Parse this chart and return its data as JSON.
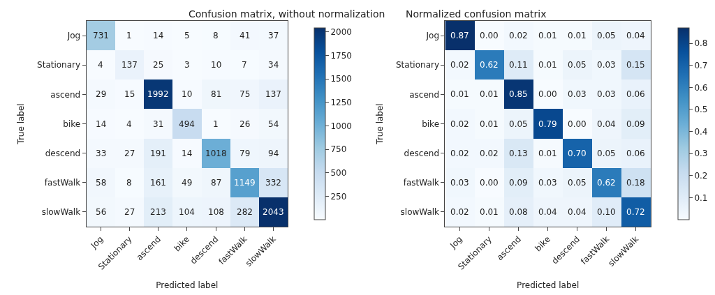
{
  "chart_data": [
    {
      "type": "heatmap",
      "title": "Confusion matrix, without normalization",
      "xlabel": "Predicted label",
      "ylabel": "True label",
      "categories": [
        "Jog",
        "Stationary",
        "ascend",
        "bike",
        "descend",
        "fastWalk",
        "slowWalk"
      ],
      "y_categories": [
        "Jog",
        "Stationary",
        "ascend",
        "bike",
        "descend",
        "fastWalk",
        "slowWalk"
      ],
      "cells": [
        [
          731,
          1,
          14,
          5,
          8,
          41,
          37
        ],
        [
          4,
          137,
          25,
          3,
          10,
          7,
          34
        ],
        [
          29,
          15,
          1992,
          10,
          81,
          75,
          137
        ],
        [
          14,
          4,
          31,
          494,
          1,
          26,
          54
        ],
        [
          33,
          27,
          191,
          14,
          1018,
          79,
          94
        ],
        [
          58,
          8,
          161,
          49,
          87,
          1149,
          332
        ],
        [
          56,
          27,
          213,
          104,
          108,
          282,
          2043
        ]
      ],
      "clim": [
        1,
        2043
      ],
      "cticks": [
        250,
        500,
        750,
        1000,
        1250,
        1500,
        1750,
        2000
      ],
      "data_labels": true
    },
    {
      "type": "heatmap",
      "title": "Normalized confusion matrix",
      "xlabel": "Predicted label",
      "ylabel": "True label",
      "categories": [
        "Jog",
        "Stationary",
        "ascend",
        "bike",
        "descend",
        "fastWalk",
        "slowWalk"
      ],
      "y_categories": [
        "Jog",
        "Stationary",
        "ascend",
        "bike",
        "descend",
        "fastWalk",
        "slowWalk"
      ],
      "cells": [
        [
          0.87,
          0.0,
          0.02,
          0.01,
          0.01,
          0.05,
          0.04
        ],
        [
          0.02,
          0.62,
          0.11,
          0.01,
          0.05,
          0.03,
          0.15
        ],
        [
          0.01,
          0.01,
          0.85,
          0.0,
          0.03,
          0.03,
          0.06
        ],
        [
          0.02,
          0.01,
          0.05,
          0.79,
          0.0,
          0.04,
          0.09
        ],
        [
          0.02,
          0.02,
          0.13,
          0.01,
          0.7,
          0.05,
          0.06
        ],
        [
          0.03,
          0.0,
          0.09,
          0.03,
          0.05,
          0.62,
          0.18
        ],
        [
          0.02,
          0.01,
          0.08,
          0.04,
          0.04,
          0.1,
          0.72
        ]
      ],
      "cell_labels": [
        [
          "0.87",
          "0.00",
          "0.02",
          "0.01",
          "0.01",
          "0.05",
          "0.04"
        ],
        [
          "0.02",
          "0.62",
          "0.11",
          "0.01",
          "0.05",
          "0.03",
          "0.15"
        ],
        [
          "0.01",
          "0.01",
          "0.85",
          "0.00",
          "0.03",
          "0.03",
          "0.06"
        ],
        [
          "0.02",
          "0.01",
          "0.05",
          "0.79",
          "0.00",
          "0.04",
          "0.09"
        ],
        [
          "0.02",
          "0.02",
          "0.13",
          "0.01",
          "0.70",
          "0.05",
          "0.06"
        ],
        [
          "0.03",
          "0.00",
          "0.09",
          "0.03",
          "0.05",
          "0.62",
          "0.18"
        ],
        [
          "0.02",
          "0.01",
          "0.08",
          "0.04",
          "0.04",
          "0.10",
          "0.72"
        ]
      ],
      "clim": [
        0,
        0.87
      ],
      "cticks": [
        0.1,
        0.2,
        0.3,
        0.4,
        0.5,
        0.6,
        0.7,
        0.8
      ]
    }
  ]
}
